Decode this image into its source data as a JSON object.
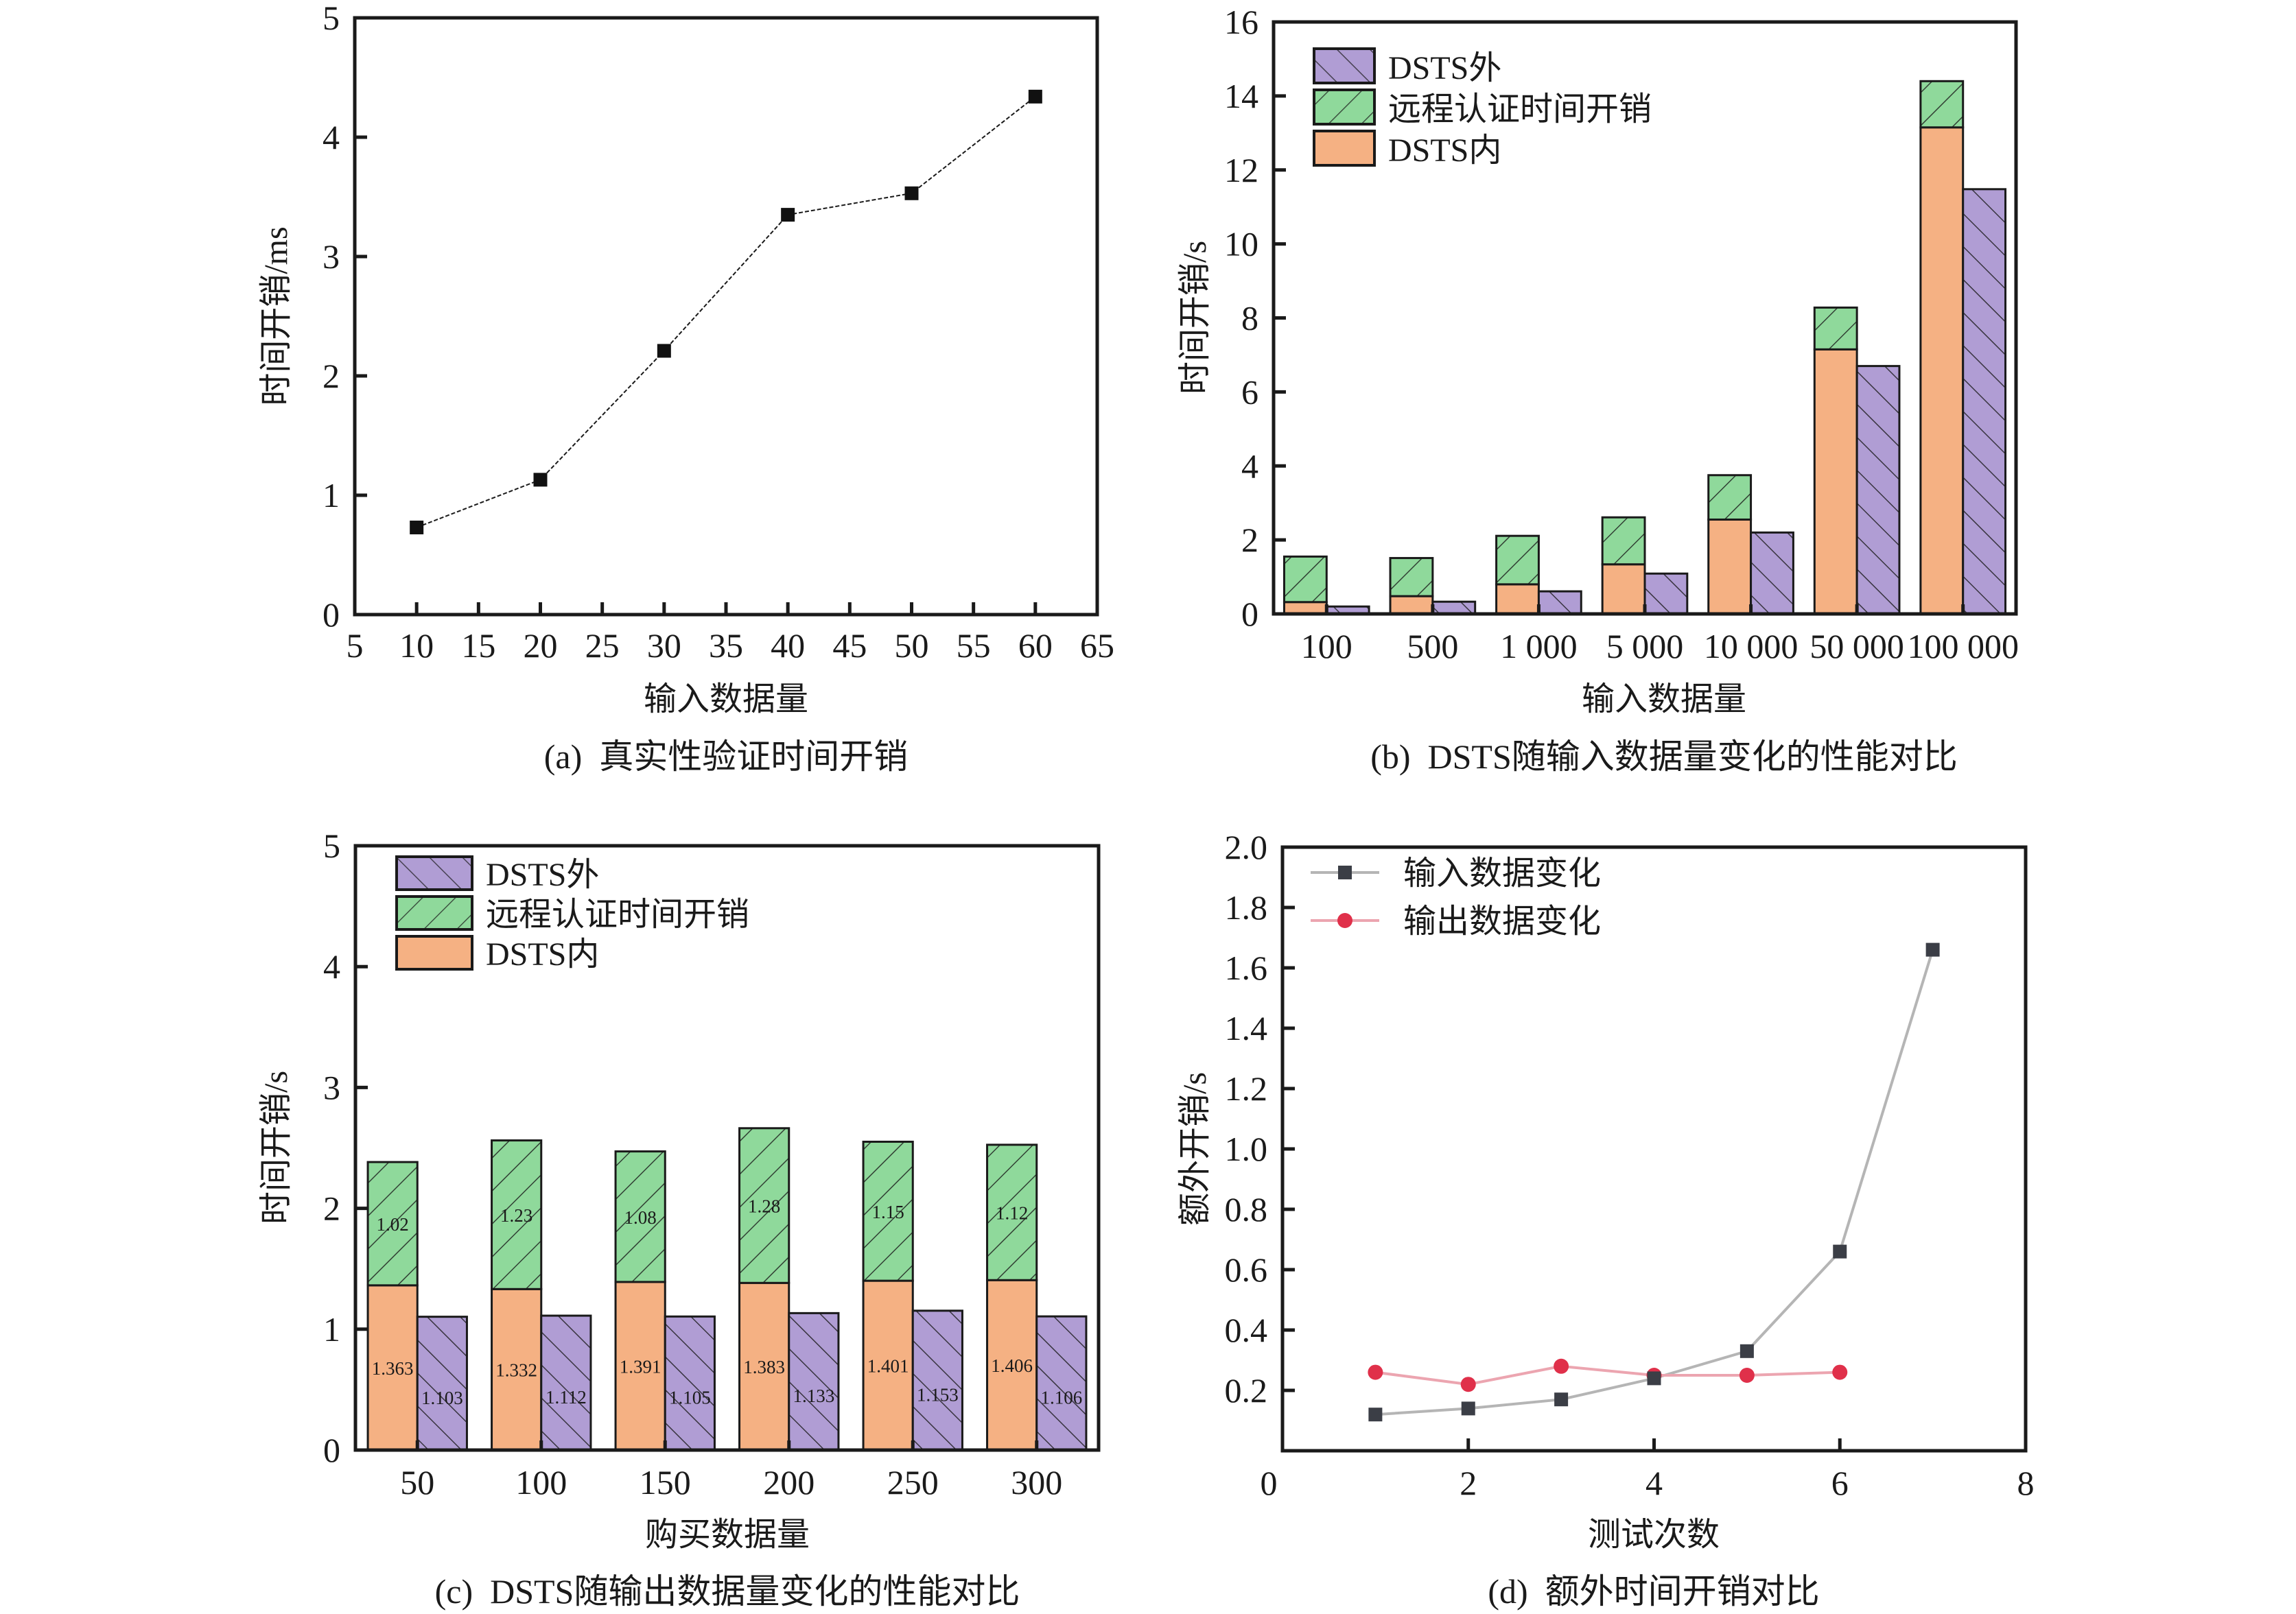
{
  "figure": {
    "colors": {
      "dsts_inner": "#f5b183",
      "remote_auth": "#8fd99b",
      "dsts_outer": "#b09dd4",
      "input_series": "#3b3e46",
      "input_line": "#b5b5b5",
      "output_series": "#e0304a",
      "output_line": "#eca5b0",
      "line_a": "#1a1a1a"
    }
  },
  "chart_data": [
    {
      "id": "a",
      "type": "line",
      "caption": "(a)  真实性验证时间开销",
      "title": "",
      "xlabel": "输入数据量",
      "ylabel": "时间开销/ms",
      "xlim": [
        5,
        65
      ],
      "ylim": [
        0,
        5
      ],
      "xticks": [
        5,
        10,
        15,
        20,
        25,
        30,
        35,
        40,
        45,
        50,
        55,
        60,
        65
      ],
      "yticks": [
        0,
        1,
        2,
        3,
        4,
        5
      ],
      "grid": false,
      "series": [
        {
          "name": "真实性验证时间开销",
          "marker": "square",
          "x": [
            10,
            20,
            30,
            40,
            50,
            60
          ],
          "y": [
            0.73,
            1.13,
            2.21,
            3.35,
            3.53,
            4.34
          ]
        }
      ]
    },
    {
      "id": "b",
      "type": "bar",
      "caption": "(b)  DSTS随输入数据量变化的性能对比",
      "title": "",
      "xlabel": "输入数据量",
      "ylabel": "时间开销/s",
      "ylim": [
        0,
        16
      ],
      "yticks": [
        0,
        2,
        4,
        6,
        8,
        10,
        12,
        14,
        16
      ],
      "grid": false,
      "legend_position": "top-left",
      "legend": [
        "DSTS外",
        "远程认证时间开销",
        "DSTS内"
      ],
      "categories": [
        "100",
        "500",
        "1 000",
        "5 000",
        "10 000",
        "50 000",
        "100 000"
      ],
      "series": [
        {
          "name": "DSTS内",
          "stack": "inside",
          "values": [
            0.32,
            0.48,
            0.8,
            1.34,
            2.55,
            7.15,
            13.15
          ]
        },
        {
          "name": "远程认证时间开销",
          "stack": "inside",
          "values": [
            1.23,
            1.03,
            1.31,
            1.27,
            1.2,
            1.13,
            1.25
          ]
        },
        {
          "name": "DSTS外",
          "stack": "outside",
          "values": [
            0.2,
            0.33,
            0.61,
            1.09,
            2.2,
            6.7,
            11.48
          ]
        }
      ]
    },
    {
      "id": "c",
      "type": "bar",
      "caption": "(c)  DSTS随输出数据量变化的性能对比",
      "title": "",
      "xlabel": "购买数据量",
      "ylabel": "时间开销/s",
      "ylim": [
        0,
        5
      ],
      "yticks": [
        0,
        1,
        2,
        3,
        4,
        5
      ],
      "grid": false,
      "legend_position": "top-left",
      "legend": [
        "DSTS外",
        "远程认证时间开销",
        "DSTS内"
      ],
      "categories": [
        "50",
        "100",
        "150",
        "200",
        "250",
        "300"
      ],
      "series": [
        {
          "name": "DSTS内",
          "stack": "inside",
          "values": [
            1.363,
            1.332,
            1.391,
            1.383,
            1.401,
            1.406
          ],
          "labels": [
            "1.363",
            "1.332",
            "1.391",
            "1.383",
            "1.401",
            "1.406"
          ]
        },
        {
          "name": "远程认证时间开销",
          "stack": "inside",
          "values": [
            1.02,
            1.23,
            1.08,
            1.28,
            1.15,
            1.12
          ],
          "labels": [
            "1.02",
            "1.23",
            "1.08",
            "1.28",
            "1.15",
            "1.12"
          ]
        },
        {
          "name": "DSTS外",
          "stack": "outside",
          "values": [
            1.103,
            1.112,
            1.105,
            1.133,
            1.153,
            1.106
          ],
          "labels": [
            "1.103",
            "1.112",
            "1.105",
            "1.133",
            "1.153",
            "1.106"
          ]
        }
      ]
    },
    {
      "id": "d",
      "type": "line",
      "caption": "(d)  额外时间开销对比",
      "title": "",
      "xlabel": "测试次数",
      "ylabel": "额外开销/s",
      "xlim": [
        0,
        8
      ],
      "ylim": [
        0,
        2.0
      ],
      "xticks": [
        0,
        2,
        4,
        6,
        8
      ],
      "yticks": [
        0.2,
        0.4,
        0.6,
        0.8,
        1.0,
        1.2,
        1.4,
        1.6,
        1.8,
        2.0
      ],
      "ytick_labels": [
        "0.2",
        "0.4",
        "0.6",
        "0.8",
        "1.0",
        "1.2",
        "1.4",
        "1.6",
        "1.8",
        "2.0"
      ],
      "grid": false,
      "legend_position": "top-left",
      "series": [
        {
          "name": "输入数据变化",
          "marker": "square",
          "x": [
            1,
            2,
            3,
            4,
            5,
            6,
            7
          ],
          "y": [
            0.12,
            0.14,
            0.17,
            0.24,
            0.33,
            0.66,
            1.66
          ]
        },
        {
          "name": "输出数据变化",
          "marker": "circle",
          "x": [
            1,
            2,
            3,
            4,
            5,
            6
          ],
          "y": [
            0.26,
            0.22,
            0.28,
            0.25,
            0.25,
            0.26
          ]
        }
      ]
    }
  ]
}
